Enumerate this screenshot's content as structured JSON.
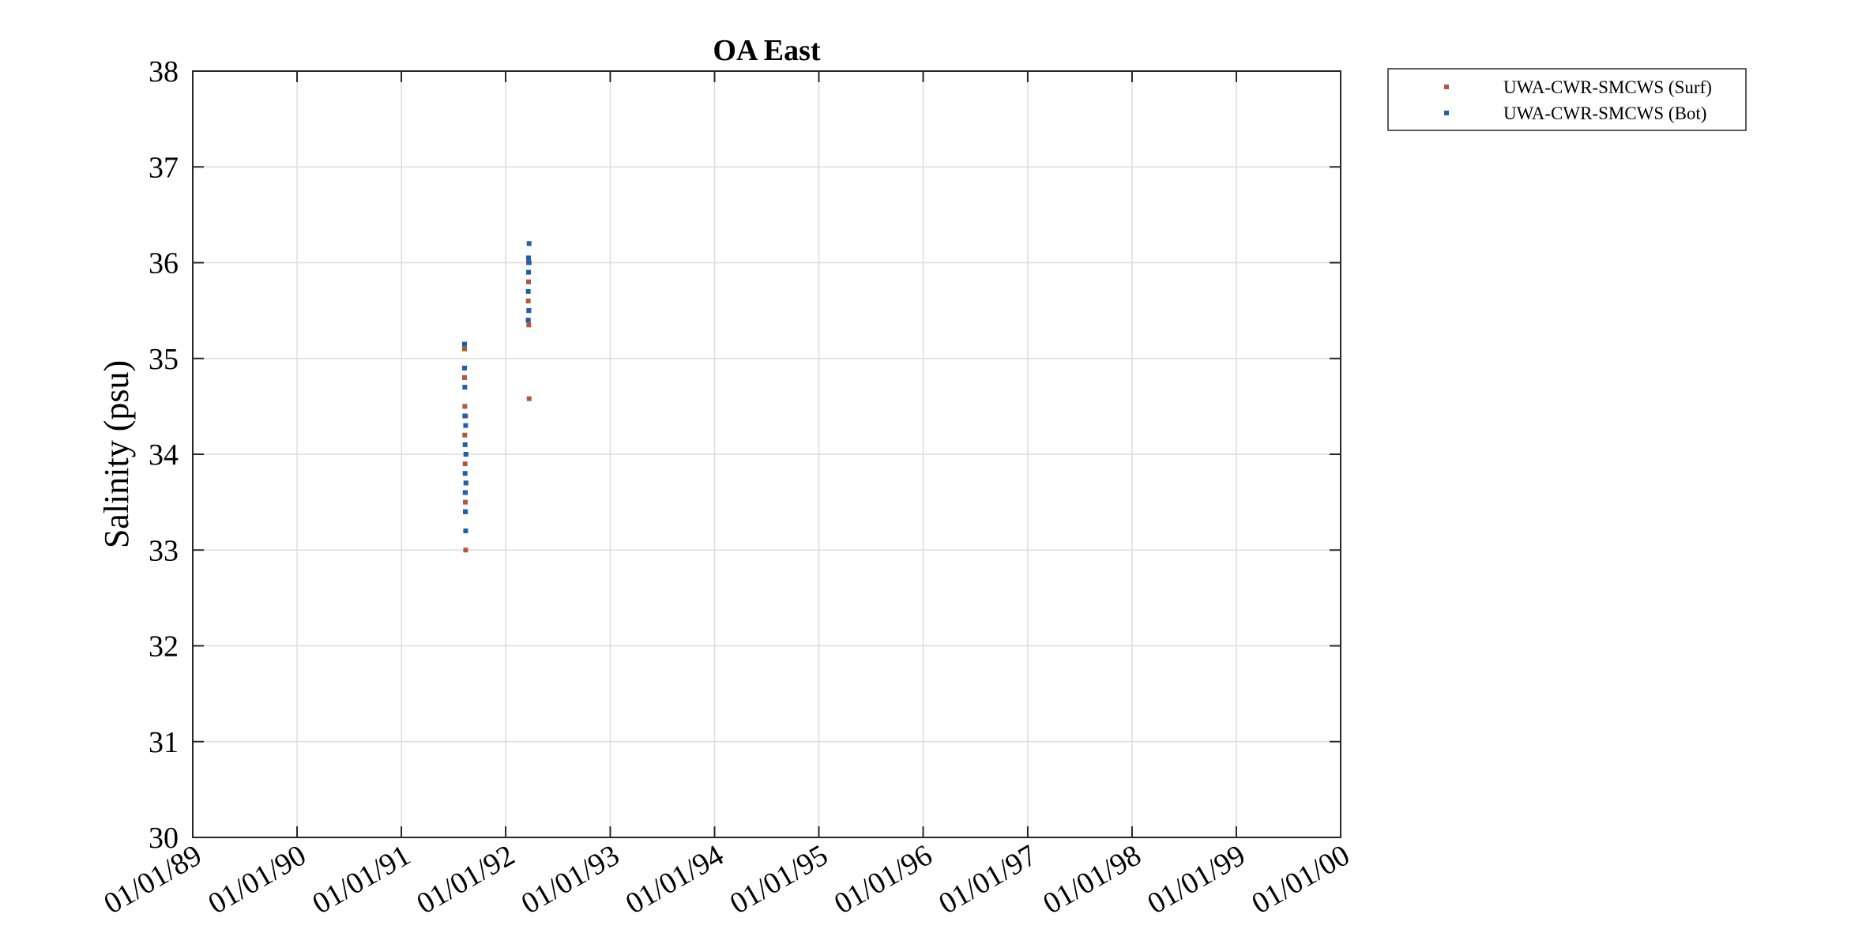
{
  "chart_data": {
    "type": "scatter",
    "title": "OA East",
    "xlabel": "",
    "ylabel": "Salinity (psu)",
    "xlim": [
      "1989-01-01",
      "2000-01-01"
    ],
    "ylim": [
      30,
      38
    ],
    "yticks": [
      30,
      31,
      32,
      33,
      34,
      35,
      36,
      37,
      38
    ],
    "xticks": [
      {
        "date": "1989-01-01",
        "label": "01/01/89"
      },
      {
        "date": "1990-01-01",
        "label": "01/01/90"
      },
      {
        "date": "1991-01-01",
        "label": "01/01/91"
      },
      {
        "date": "1992-01-01",
        "label": "01/01/92"
      },
      {
        "date": "1993-01-01",
        "label": "01/01/93"
      },
      {
        "date": "1994-01-01",
        "label": "01/01/94"
      },
      {
        "date": "1995-01-01",
        "label": "01/01/95"
      },
      {
        "date": "1996-01-01",
        "label": "01/01/96"
      },
      {
        "date": "1997-01-01",
        "label": "01/01/97"
      },
      {
        "date": "1998-01-01",
        "label": "01/01/98"
      },
      {
        "date": "1999-01-01",
        "label": "01/01/99"
      },
      {
        "date": "2000-01-01",
        "label": "01/01/00"
      }
    ],
    "grid": true,
    "legend_position": "outside-top-right",
    "series": [
      {
        "name": "UWA-CWR-SMCWS (Surf)",
        "color": "#b5573a",
        "points": [
          {
            "x": "1991-08-10",
            "y": 35.1
          },
          {
            "x": "1991-08-10",
            "y": 34.8
          },
          {
            "x": "1991-08-11",
            "y": 34.5
          },
          {
            "x": "1991-08-11",
            "y": 34.2
          },
          {
            "x": "1991-08-12",
            "y": 33.9
          },
          {
            "x": "1991-08-12",
            "y": 33.6
          },
          {
            "x": "1991-08-13",
            "y": 33.5
          },
          {
            "x": "1991-08-13",
            "y": 33.4
          },
          {
            "x": "1991-08-14",
            "y": 33.0
          },
          {
            "x": "1991-08-14",
            "y": 34.4
          },
          {
            "x": "1991-08-15",
            "y": 34.0
          },
          {
            "x": "1991-08-15",
            "y": 33.7
          },
          {
            "x": "1992-03-20",
            "y": 35.4
          },
          {
            "x": "1992-03-20",
            "y": 35.6
          },
          {
            "x": "1992-03-21",
            "y": 35.8
          },
          {
            "x": "1992-03-21",
            "y": 36.0
          },
          {
            "x": "1992-03-22",
            "y": 35.5
          },
          {
            "x": "1992-03-22",
            "y": 35.35
          },
          {
            "x": "1992-03-23",
            "y": 34.58
          }
        ]
      },
      {
        "name": "UWA-CWR-SMCWS (Bot)",
        "color": "#1f5fad",
        "points": [
          {
            "x": "1991-08-10",
            "y": 35.15
          },
          {
            "x": "1991-08-10",
            "y": 34.9
          },
          {
            "x": "1991-08-11",
            "y": 34.7
          },
          {
            "x": "1991-08-11",
            "y": 34.4
          },
          {
            "x": "1991-08-12",
            "y": 34.1
          },
          {
            "x": "1991-08-12",
            "y": 33.8
          },
          {
            "x": "1991-08-13",
            "y": 33.6
          },
          {
            "x": "1991-08-13",
            "y": 33.4
          },
          {
            "x": "1991-08-14",
            "y": 33.2
          },
          {
            "x": "1991-08-14",
            "y": 34.3
          },
          {
            "x": "1991-08-15",
            "y": 34.0
          },
          {
            "x": "1991-08-15",
            "y": 33.7
          },
          {
            "x": "1992-03-20",
            "y": 35.4
          },
          {
            "x": "1992-03-20",
            "y": 35.7
          },
          {
            "x": "1992-03-21",
            "y": 35.9
          },
          {
            "x": "1992-03-21",
            "y": 36.05
          },
          {
            "x": "1992-03-23",
            "y": 36.2
          },
          {
            "x": "1992-03-23",
            "y": 36.0
          },
          {
            "x": "1992-03-22",
            "y": 35.5
          }
        ]
      }
    ]
  }
}
